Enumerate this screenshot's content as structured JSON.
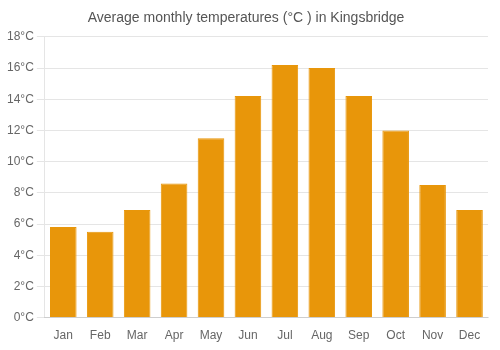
{
  "chart_data": {
    "type": "bar",
    "title": "Average monthly temperatures (°C ) in Kingsbridge",
    "categories": [
      "Jan",
      "Feb",
      "Mar",
      "Apr",
      "May",
      "Jun",
      "Jul",
      "Aug",
      "Sep",
      "Oct",
      "Nov",
      "Dec"
    ],
    "values": [
      5.8,
      5.5,
      6.9,
      8.6,
      11.5,
      14.2,
      16.2,
      16.0,
      14.2,
      12.0,
      8.5,
      6.9
    ],
    "color": "#E8960A",
    "ylim": [
      0,
      18
    ],
    "yticks": [
      {
        "value": 0,
        "label": "0°C"
      },
      {
        "value": 2,
        "label": "2°C"
      },
      {
        "value": 4,
        "label": "4°C"
      },
      {
        "value": 6,
        "label": "6°C"
      },
      {
        "value": 8,
        "label": "8°C"
      },
      {
        "value": 10,
        "label": "10°C"
      },
      {
        "value": 12,
        "label": "12°C"
      },
      {
        "value": 14,
        "label": "14°C"
      },
      {
        "value": 16,
        "label": "16°C"
      },
      {
        "value": 18,
        "label": "18°C"
      }
    ],
    "grid": true
  }
}
